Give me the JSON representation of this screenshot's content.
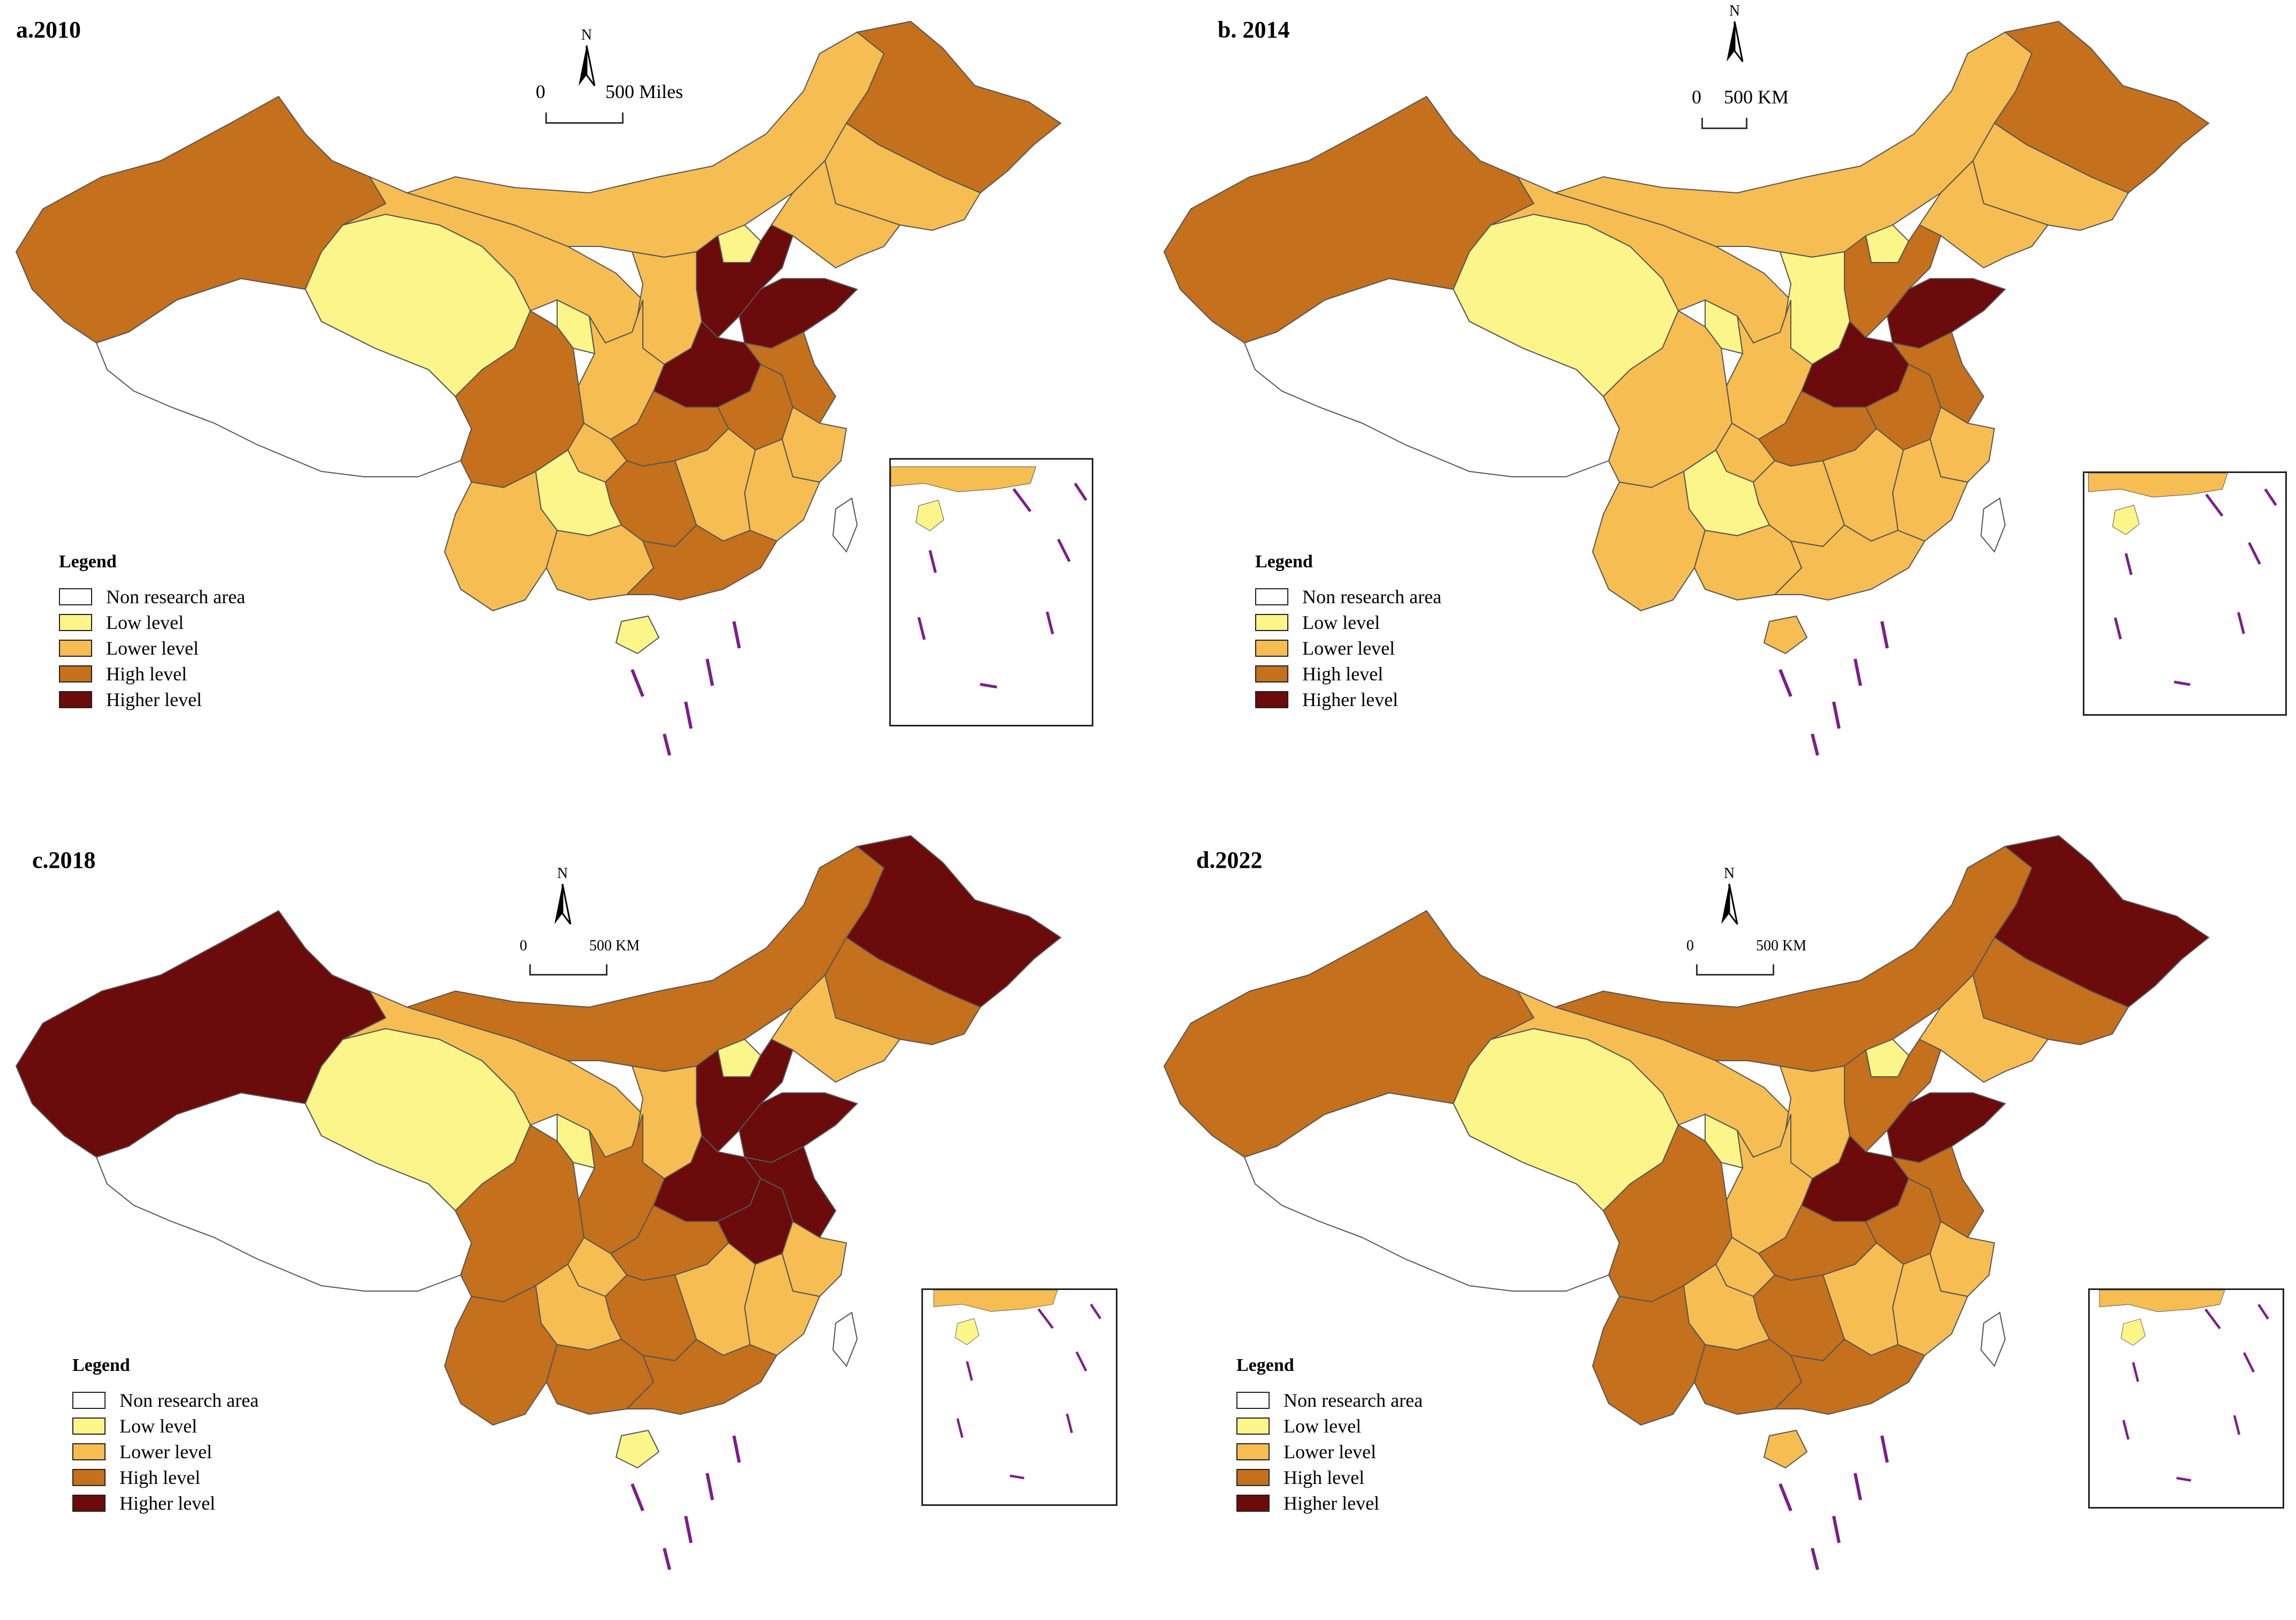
{
  "colors": {
    "non": "#ffffff",
    "low": "#fbf58a",
    "lower": "#f5bd52",
    "high": "#c4701c",
    "higher": "#6b0b0b",
    "border": "#555555",
    "dash": "#7a1f8c"
  },
  "legend": {
    "title": "Legend",
    "items": [
      {
        "key": "non",
        "label": "Non research area"
      },
      {
        "key": "low",
        "label": "Low level"
      },
      {
        "key": "lower",
        "label": "Lower level"
      },
      {
        "key": "high",
        "label": "High level"
      },
      {
        "key": "higher",
        "label": "Higher level"
      }
    ]
  },
  "compass_label": "N",
  "panels": [
    {
      "title": "a.2010",
      "scale_zero": "0",
      "scale_label": "500 Miles",
      "regions": {
        "xinjiang": "high",
        "tibet": "non",
        "qinghai": "low",
        "gansu": "lower",
        "inner_mongolia": "lower",
        "heilongjiang": "high",
        "jilin": "lower",
        "liaoning": "lower",
        "beijing": "low",
        "hebei": "higher",
        "shanxi": "lower",
        "shandong": "higher",
        "henan": "higher",
        "shaanxi": "lower",
        "ningxia": "low",
        "sichuan": "high",
        "chongqing": "lower",
        "hubei": "high",
        "anhui": "high",
        "jiangsu": "high",
        "zhejiang": "lower",
        "fujian": "lower",
        "jiangxi": "lower",
        "hunan": "high",
        "guizhou": "low",
        "yunnan": "lower",
        "guangxi": "lower",
        "guangdong": "high",
        "hainan": "low",
        "taiwan": "non"
      }
    },
    {
      "title": "b. 2014",
      "scale_zero": "0",
      "scale_label": "500 KM",
      "regions": {
        "xinjiang": "high",
        "tibet": "non",
        "qinghai": "low",
        "gansu": "lower",
        "inner_mongolia": "lower",
        "heilongjiang": "high",
        "jilin": "lower",
        "liaoning": "lower",
        "beijing": "low",
        "hebei": "high",
        "shanxi": "low",
        "shandong": "higher",
        "henan": "higher",
        "shaanxi": "lower",
        "ningxia": "low",
        "sichuan": "lower",
        "chongqing": "lower",
        "hubei": "high",
        "anhui": "high",
        "jiangsu": "high",
        "zhejiang": "lower",
        "fujian": "lower",
        "jiangxi": "lower",
        "hunan": "lower",
        "guizhou": "low",
        "yunnan": "lower",
        "guangxi": "lower",
        "guangdong": "lower",
        "hainan": "lower",
        "taiwan": "non"
      }
    },
    {
      "title": "c.2018",
      "scale_zero": "0",
      "scale_label": "500 KM",
      "regions": {
        "xinjiang": "higher",
        "tibet": "non",
        "qinghai": "low",
        "gansu": "lower",
        "inner_mongolia": "high",
        "heilongjiang": "higher",
        "jilin": "high",
        "liaoning": "lower",
        "beijing": "low",
        "hebei": "higher",
        "shanxi": "lower",
        "shandong": "higher",
        "henan": "higher",
        "shaanxi": "high",
        "ningxia": "low",
        "sichuan": "high",
        "chongqing": "lower",
        "hubei": "high",
        "anhui": "higher",
        "jiangsu": "higher",
        "zhejiang": "lower",
        "fujian": "lower",
        "jiangxi": "lower",
        "hunan": "high",
        "guizhou": "lower",
        "yunnan": "high",
        "guangxi": "high",
        "guangdong": "high",
        "hainan": "low",
        "taiwan": "non"
      }
    },
    {
      "title": "d.2022",
      "scale_zero": "0",
      "scale_label": "500 KM",
      "regions": {
        "xinjiang": "high",
        "tibet": "non",
        "qinghai": "low",
        "gansu": "lower",
        "inner_mongolia": "high",
        "heilongjiang": "higher",
        "jilin": "high",
        "liaoning": "lower",
        "beijing": "low",
        "hebei": "high",
        "shanxi": "lower",
        "shandong": "higher",
        "henan": "higher",
        "shaanxi": "lower",
        "ningxia": "low",
        "sichuan": "high",
        "chongqing": "lower",
        "hubei": "high",
        "anhui": "high",
        "jiangsu": "high",
        "zhejiang": "lower",
        "fujian": "lower",
        "jiangxi": "lower",
        "hunan": "high",
        "guizhou": "lower",
        "yunnan": "high",
        "guangxi": "high",
        "guangdong": "high",
        "hainan": "lower",
        "taiwan": "non"
      }
    }
  ]
}
